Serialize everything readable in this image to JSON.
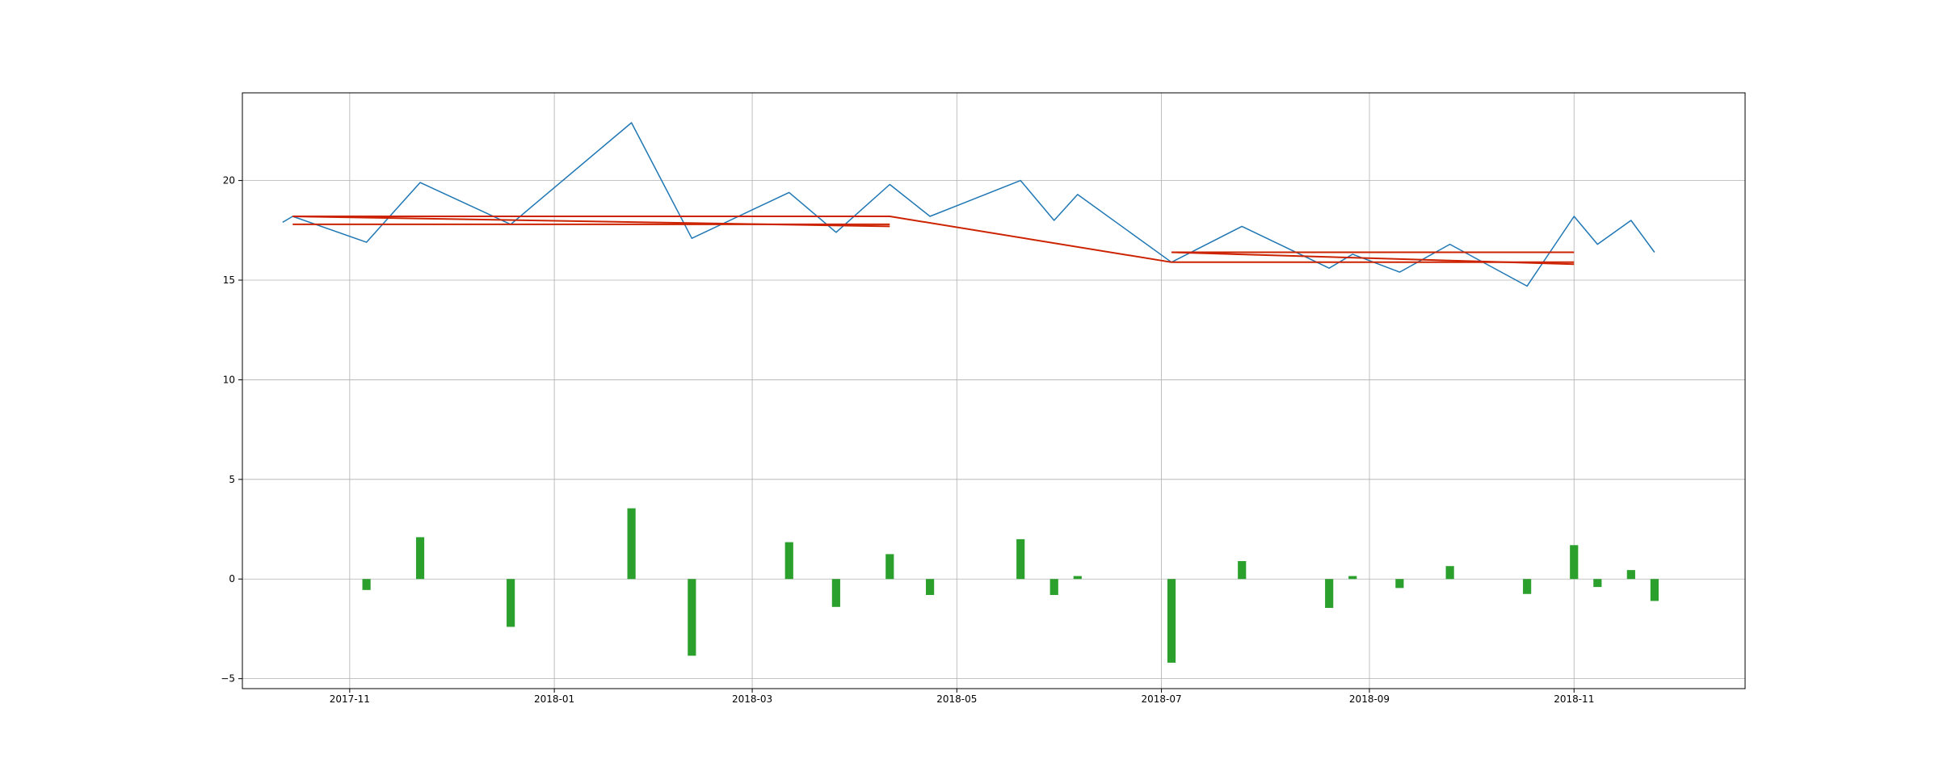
{
  "chart_data": {
    "type": "line",
    "title": "",
    "xlabel": "",
    "ylabel": "",
    "grid": true,
    "xlim": [
      "2017-09-30",
      "2018-12-22"
    ],
    "ylim": [
      -5.5,
      24.4
    ],
    "x_tick_labels": [
      "2017-11",
      "2018-01",
      "2018-03",
      "2018-05",
      "2018-07",
      "2018-09",
      "2018-11"
    ],
    "x_ticks": [
      "2017-11-01",
      "2018-01-01",
      "2018-03-01",
      "2018-05-01",
      "2018-07-01",
      "2018-09-01",
      "2018-11-01"
    ],
    "y_ticks": [
      -5,
      0,
      5,
      10,
      15,
      20
    ],
    "y_tick_labels": [
      "−5",
      "0",
      "5",
      "10",
      "15",
      "20"
    ],
    "colors": {
      "line": "#1f77b4",
      "trend": "#cc2200",
      "bars": "#2ca02c",
      "grid": "#b0b0b0",
      "zero_line": "#b0b0b0"
    },
    "series": [
      {
        "type": "line",
        "points": [
          [
            "2017-10-12",
            17.9
          ],
          [
            "2017-10-15",
            18.2
          ],
          [
            "2017-11-06",
            16.9
          ],
          [
            "2017-11-22",
            19.9
          ],
          [
            "2017-12-19",
            17.8
          ],
          [
            "2018-01-24",
            22.9
          ],
          [
            "2018-02-11",
            17.1
          ],
          [
            "2018-03-12",
            19.4
          ],
          [
            "2018-03-26",
            17.4
          ],
          [
            "2018-04-11",
            19.8
          ],
          [
            "2018-04-23",
            18.2
          ],
          [
            "2018-05-20",
            20.0
          ],
          [
            "2018-05-30",
            18.0
          ],
          [
            "2018-06-06",
            19.3
          ],
          [
            "2018-07-04",
            15.9
          ],
          [
            "2018-07-25",
            17.7
          ],
          [
            "2018-08-20",
            15.6
          ],
          [
            "2018-08-27",
            16.3
          ],
          [
            "2018-09-10",
            15.4
          ],
          [
            "2018-09-25",
            16.8
          ],
          [
            "2018-10-18",
            14.7
          ],
          [
            "2018-11-01",
            18.2
          ],
          [
            "2018-11-08",
            16.8
          ],
          [
            "2018-11-18",
            18.0
          ],
          [
            "2018-11-25",
            16.4
          ]
        ]
      },
      {
        "type": "line",
        "points": [
          [
            "2017-10-15",
            18.2
          ],
          [
            "2018-04-11",
            18.2
          ],
          [
            "2018-07-04",
            15.9
          ],
          [
            "2018-11-01",
            15.9
          ]
        ]
      },
      {
        "type": "line",
        "points": [
          [
            "2017-10-15",
            17.8
          ],
          [
            "2018-04-11",
            17.8
          ]
        ]
      },
      {
        "type": "line",
        "points": [
          [
            "2017-10-15",
            18.2
          ],
          [
            "2018-04-11",
            17.7
          ]
        ]
      },
      {
        "type": "line",
        "points": [
          [
            "2018-07-04",
            16.4
          ],
          [
            "2018-11-01",
            16.4
          ]
        ]
      },
      {
        "type": "line",
        "points": [
          [
            "2018-07-04",
            16.4
          ],
          [
            "2018-11-01",
            15.8
          ]
        ]
      },
      {
        "type": "bar",
        "points": [
          [
            "2017-11-06",
            -0.55
          ],
          [
            "2017-11-22",
            2.1
          ],
          [
            "2017-12-19",
            -2.4
          ],
          [
            "2018-01-24",
            3.55
          ],
          [
            "2018-02-11",
            -3.85
          ],
          [
            "2018-03-12",
            1.85
          ],
          [
            "2018-03-26",
            -1.4
          ],
          [
            "2018-04-11",
            1.25
          ],
          [
            "2018-04-23",
            -0.8
          ],
          [
            "2018-05-20",
            2.0
          ],
          [
            "2018-05-30",
            -0.8
          ],
          [
            "2018-06-06",
            0.15
          ],
          [
            "2018-07-04",
            -4.2
          ],
          [
            "2018-07-25",
            0.9
          ],
          [
            "2018-08-20",
            -1.45
          ],
          [
            "2018-08-27",
            0.15
          ],
          [
            "2018-09-10",
            -0.45
          ],
          [
            "2018-09-25",
            0.65
          ],
          [
            "2018-10-18",
            -0.75
          ],
          [
            "2018-11-01",
            1.7
          ],
          [
            "2018-11-08",
            -0.4
          ],
          [
            "2018-11-18",
            0.45
          ],
          [
            "2018-11-25",
            -1.1
          ]
        ]
      }
    ]
  }
}
